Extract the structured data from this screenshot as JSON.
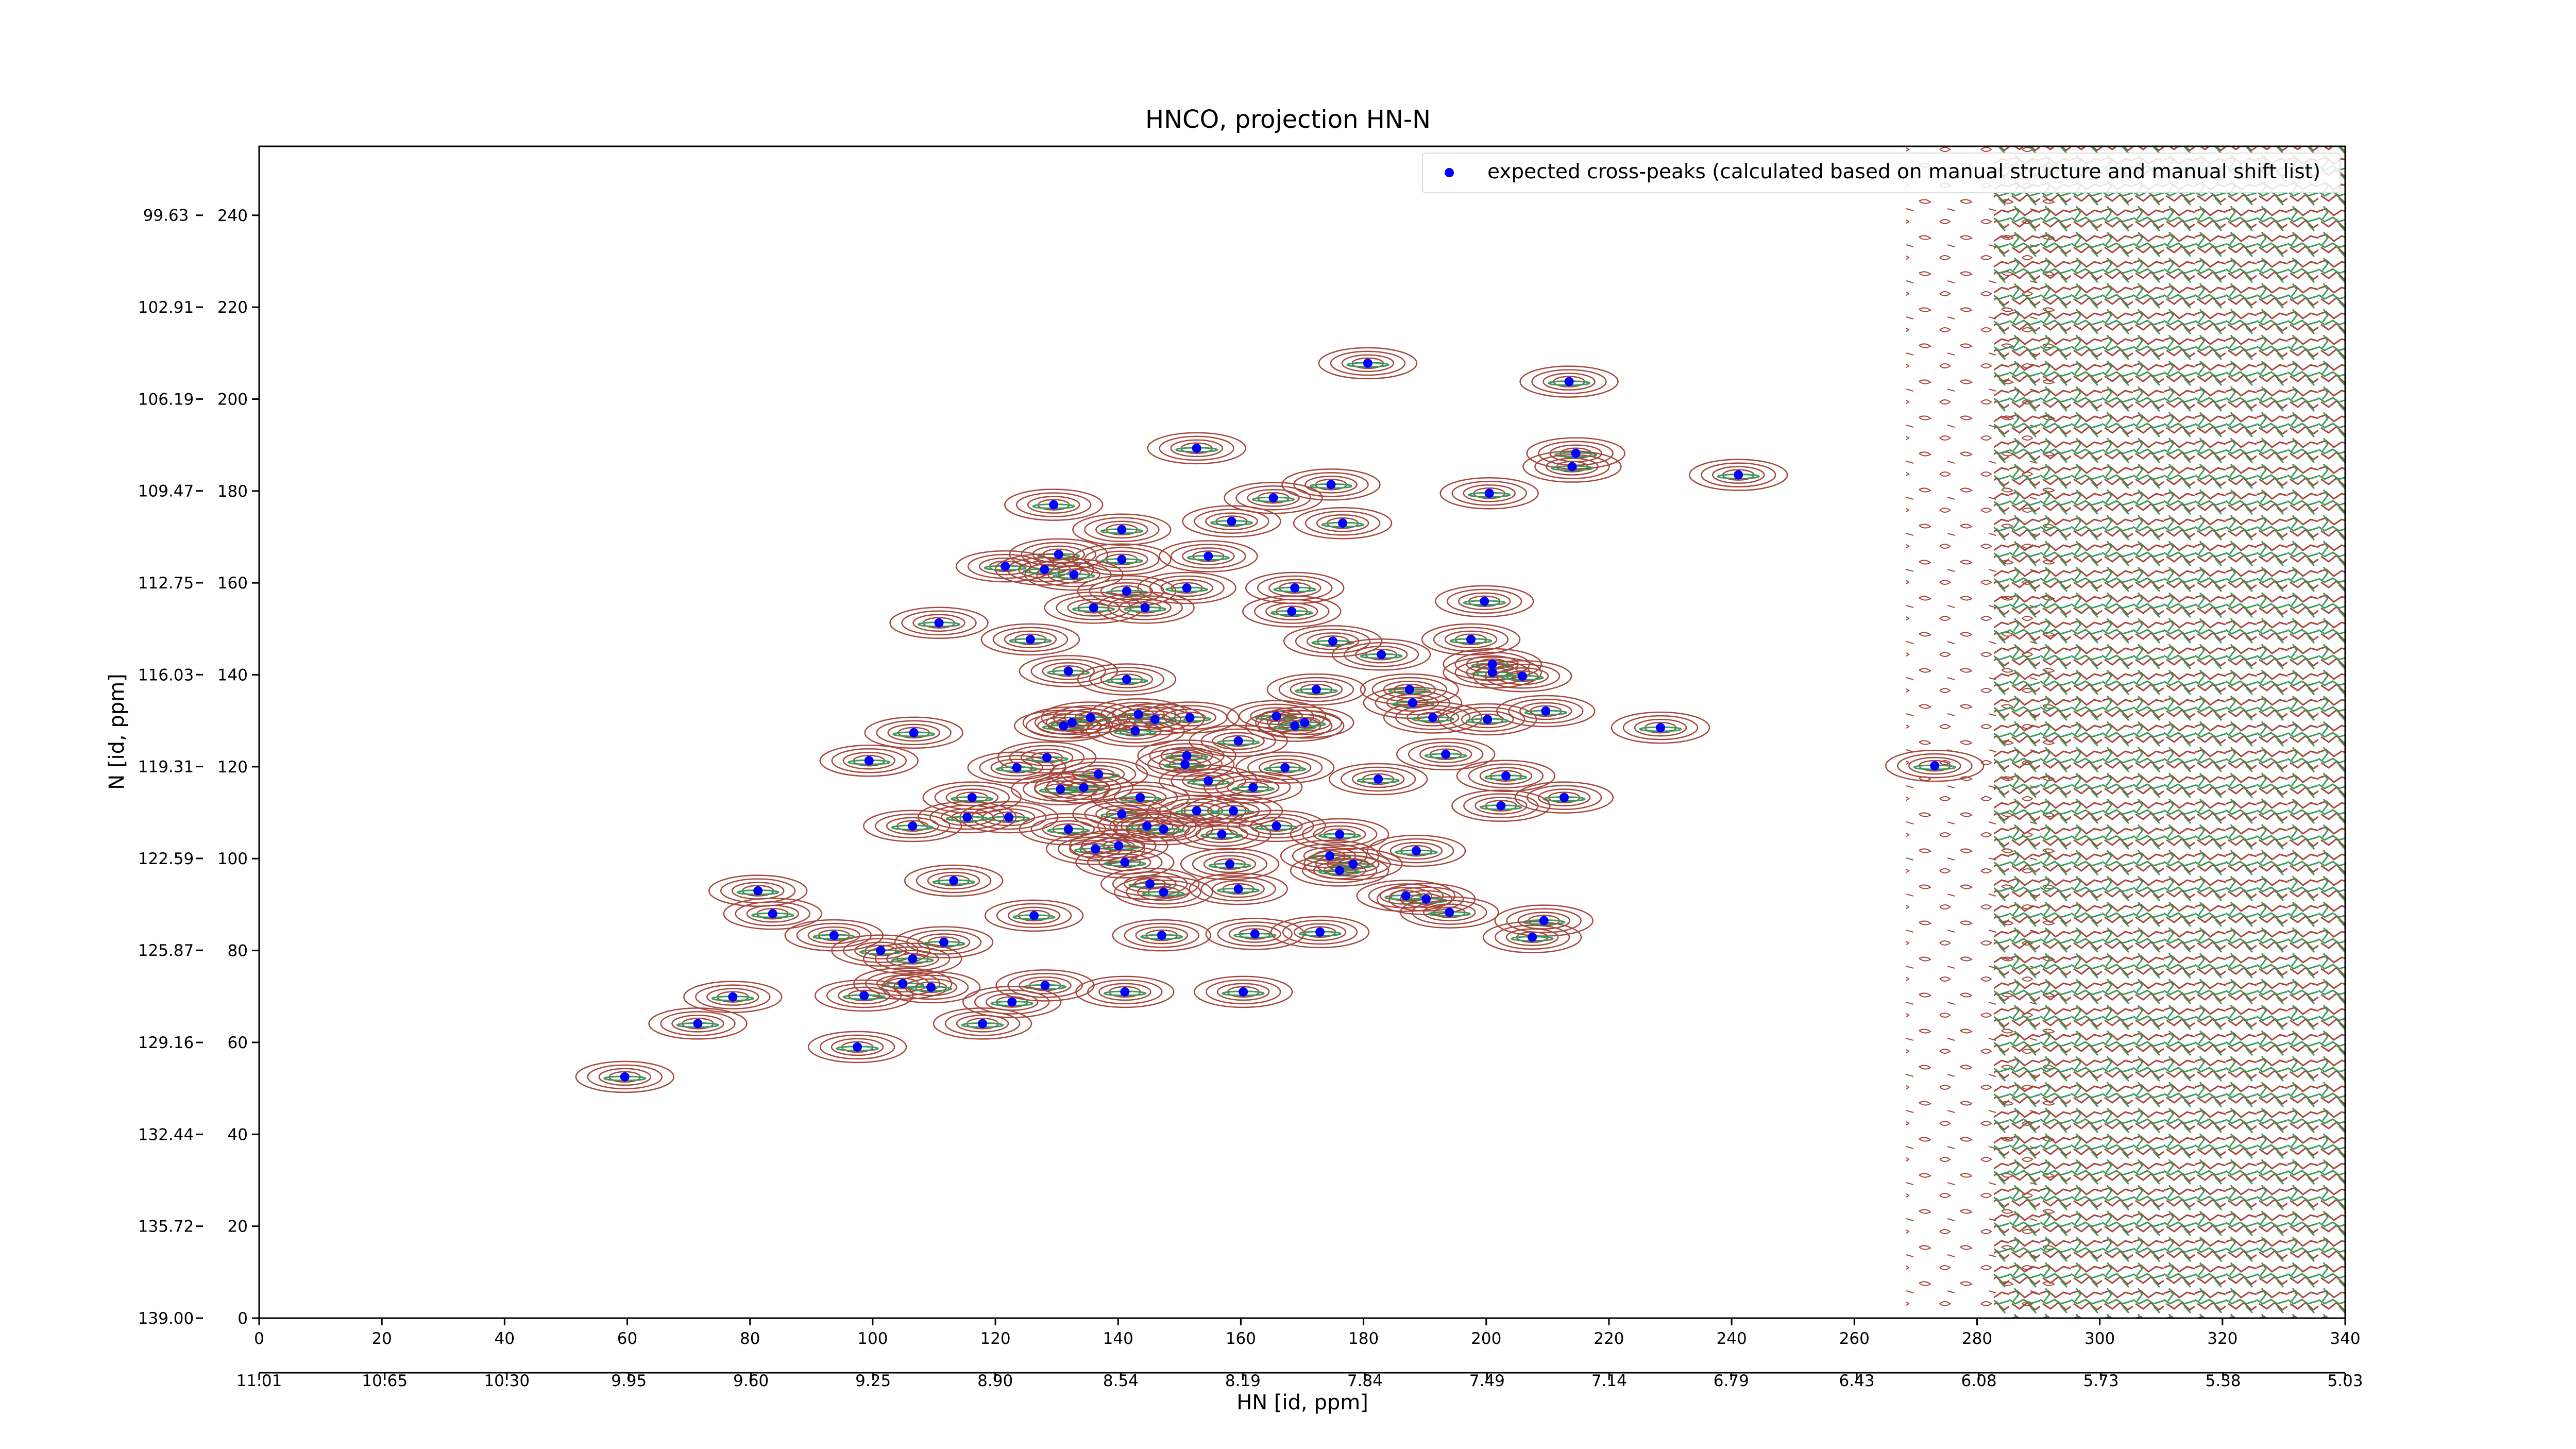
{
  "chart_data": {
    "type": "scatter",
    "title": "HNCO, projection HN-N",
    "xlabel": "HN [id, ppm]",
    "ylabel": "N [id, ppm]",
    "legend": "upper right",
    "series": [
      {
        "name": "expected cross-peaks (calculated based on manual structure and manual shift list)",
        "color": "#0000ff",
        "x": [
          180.7,
          213.5,
          152.8,
          214.6,
          214.0,
          241.1,
          174.7,
          200.5,
          165.3,
          129.5,
          176.6,
          158.5,
          140.6,
          130.3,
          140.6,
          154.7,
          121.6,
          128.0,
          132.8,
          168.8,
          151.2,
          141.4,
          199.7,
          136.0,
          144.4,
          168.3,
          110.8,
          125.7,
          175.0,
          197.5,
          182.9,
          201.0,
          201.0,
          131.9,
          205.9,
          141.4,
          172.3,
          187.5,
          188.0,
          209.7,
          228.4,
          165.8,
          143.3,
          151.7,
          191.3,
          200.2,
          170.4,
          106.7,
          131.1,
          132.5,
          135.5,
          146.0,
          168.8,
          142.8,
          159.6,
          128.4,
          151.2,
          193.4,
          99.4,
          123.5,
          273.1,
          150.9,
          167.2,
          136.8,
          203.2,
          182.4,
          154.7,
          130.6,
          134.4,
          162.0,
          212.7,
          116.2,
          143.6,
          202.4,
          152.8,
          158.8,
          122.2,
          115.4,
          140.6,
          144.7,
          165.8,
          106.5,
          131.9,
          156.9,
          147.4,
          176.1,
          136.3,
          140.1,
          188.6,
          174.5,
          178.3,
          176.1,
          141.1,
          158.2,
          113.2,
          145.2,
          159.6,
          147.4,
          81.3,
          186.9,
          190.2,
          83.7,
          126.3,
          194.0,
          209.4,
          93.7,
          101.3,
          111.6,
          147.1,
          162.3,
          172.9,
          207.5,
          106.5,
          104.9,
          109.5,
          128.1,
          98.6,
          77.2,
          122.7,
          141.1,
          160.4,
          71.5,
          117.9,
          97.5,
          59.6
        ],
        "y": [
          207.8,
          203.8,
          189.3,
          188.2,
          185.3,
          183.5,
          181.4,
          179.5,
          178.5,
          177.0,
          173.0,
          173.4,
          171.6,
          166.2,
          165.1,
          165.8,
          163.6,
          162.9,
          161.8,
          158.9,
          158.9,
          158.2,
          156.0,
          154.6,
          154.6,
          153.8,
          151.3,
          147.7,
          147.3,
          147.7,
          144.4,
          142.3,
          140.5,
          140.8,
          139.7,
          139.0,
          136.8,
          136.8,
          133.9,
          132.1,
          128.5,
          131.0,
          131.4,
          130.7,
          130.7,
          130.3,
          129.6,
          127.4,
          128.9,
          129.6,
          130.7,
          130.3,
          128.9,
          127.8,
          125.6,
          122.0,
          122.4,
          122.7,
          121.3,
          119.8,
          120.2,
          120.5,
          119.8,
          118.4,
          118.0,
          117.3,
          116.9,
          115.1,
          115.5,
          115.5,
          113.3,
          113.3,
          113.3,
          111.5,
          110.4,
          110.4,
          109.0,
          109.0,
          109.7,
          107.1,
          107.1,
          107.1,
          106.4,
          105.3,
          106.4,
          105.3,
          102.1,
          102.8,
          101.7,
          100.6,
          98.8,
          97.4,
          99.2,
          98.8,
          95.2,
          94.5,
          93.4,
          92.7,
          93.0,
          91.9,
          91.2,
          88.0,
          87.6,
          88.3,
          86.5,
          83.3,
          80.0,
          81.8,
          83.3,
          83.6,
          84.0,
          82.9,
          78.2,
          72.8,
          72.0,
          72.4,
          70.2,
          69.9,
          68.8,
          71.0,
          71.0,
          64.1,
          64.1,
          59.0,
          52.5
        ]
      }
    ],
    "xlim": [
      0,
      340
    ],
    "xticks": [
      0,
      20,
      40,
      60,
      80,
      100,
      120,
      140,
      160,
      180,
      200,
      220,
      240,
      260,
      280,
      300,
      320,
      340
    ],
    "ylim": [
      0,
      255
    ],
    "yticks": [
      0,
      20,
      40,
      60,
      80,
      100,
      120,
      140,
      160,
      180,
      200,
      220,
      240
    ],
    "x2lim": [
      11.01,
      5.03
    ],
    "x2ticks": [
      11.01,
      10.65,
      {
        "value": 10.3,
        "label": "10.30"
      },
      9.95,
      {
        "value": 9.6,
        "label": "9.60"
      },
      9.25,
      {
        "value": 8.9,
        "label": "8.90"
      },
      8.54,
      8.19,
      7.84,
      7.49,
      7.14,
      6.79,
      6.43,
      6.08,
      5.73,
      5.38,
      5.03
    ],
    "y2lim": [
      139.0,
      97.17
    ],
    "y2ticks": [
      {
        "value": 139,
        "label": "139.00"
      },
      135.72,
      132.44,
      129.16,
      125.87,
      122.59,
      119.31,
      116.03,
      112.75,
      109.47,
      106.19,
      102.91,
      99.63
    ]
  }
}
